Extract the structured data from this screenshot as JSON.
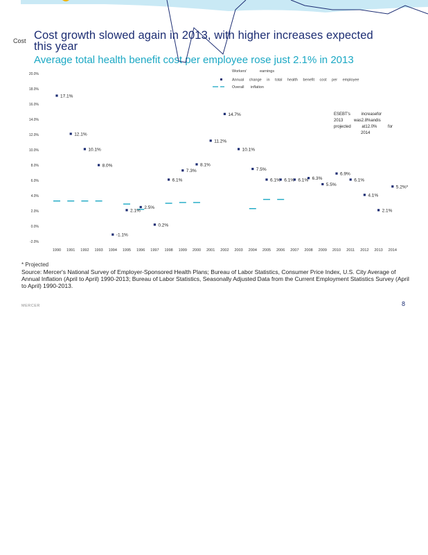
{
  "slide": {
    "cost_tag": "Cost",
    "title": "Cost growth slowed again in 2013, with higher increases expected this year",
    "subtitle": "Average total health benefit cost per employee rose just 2.1% in 2013",
    "footnote": "* Projected",
    "source": "Source: Mercer's National Survey of Employer-Sponsored Health Plans; Bureau of Labor Statistics, Consumer Price Index, U.S. City Average of Annual Inflation (April to April) 1990-2013; Bureau of Labor Statistics, Seasonally Adjusted Data from the Current Employment Statistics Survey (April to April) 1990-2013.",
    "logo": "MERCER",
    "page_number": "8",
    "colors": {
      "navy": "#1c2d73",
      "teal": "#1ba8c4",
      "banner": "#c9e9f5"
    }
  },
  "chart_data": {
    "type": "scatter",
    "title": "",
    "xlabel": "",
    "ylabel": "",
    "ylim": [
      -2,
      20
    ],
    "y_ticks": [
      "-2.0%",
      "0.0%",
      "2.0%",
      "4.0%",
      "6.0%",
      "8.0%",
      "10.0%",
      "12.0%",
      "14.0%",
      "16.0%",
      "18.0%",
      "20.0%"
    ],
    "x": [
      "1990",
      "1991",
      "1992",
      "1993",
      "1994",
      "1995",
      "1996",
      "1997",
      "1998",
      "1999",
      "2000",
      "2001",
      "2002",
      "2003",
      "2004",
      "2005",
      "2006",
      "2007",
      "2008",
      "2009",
      "2010",
      "2011",
      "2012",
      "2013",
      "2014"
    ],
    "legend": {
      "position": "top",
      "entries": [
        "Workers' earnings",
        "Annual change in total health benefit cost per employee",
        "Overall inflation"
      ]
    },
    "series": [
      {
        "name": "Annual change in total health benefit cost per employee",
        "values": [
          17.1,
          12.1,
          10.1,
          8.0,
          -1.1,
          2.1,
          2.5,
          0.2,
          6.1,
          7.3,
          8.1,
          11.2,
          14.7,
          10.1,
          7.5,
          6.1,
          6.1,
          6.1,
          6.3,
          5.5,
          6.9,
          6.1,
          4.1,
          2.1,
          5.2
        ],
        "labels": [
          "17.1%",
          "12.1%",
          "10.1%",
          "8.0%",
          "-1.1%",
          "2.1%",
          "2.5%",
          "0.2%",
          "6.1%",
          "7.3%",
          "8.1%",
          "11.2%",
          "14.7%",
          "10.1%",
          "7.5%",
          "6.1%",
          "6.1%",
          "6.1%",
          "6.3%",
          "5.5%",
          "6.9%",
          "6.1%",
          "4.1%",
          "2.1%",
          "5.2%*"
        ]
      },
      {
        "name": "Overall inflation",
        "values": [
          3.3,
          3.3,
          3.3,
          3.3,
          null,
          2.9,
          2.2,
          null,
          3.0,
          3.1,
          3.1,
          null,
          null,
          null,
          2.3,
          3.5,
          3.5,
          null,
          null,
          null,
          null,
          null,
          null,
          null,
          null
        ]
      }
    ],
    "annotation": "ESEBT's increase for 2013 was 2.8% and is projected at 12.0% for 2014",
    "annotation_lines": [
      "ESEBT's increasefor",
      "2013 was2.8%andis",
      "projected at12.0% for",
      "2014"
    ],
    "grid": false
  }
}
